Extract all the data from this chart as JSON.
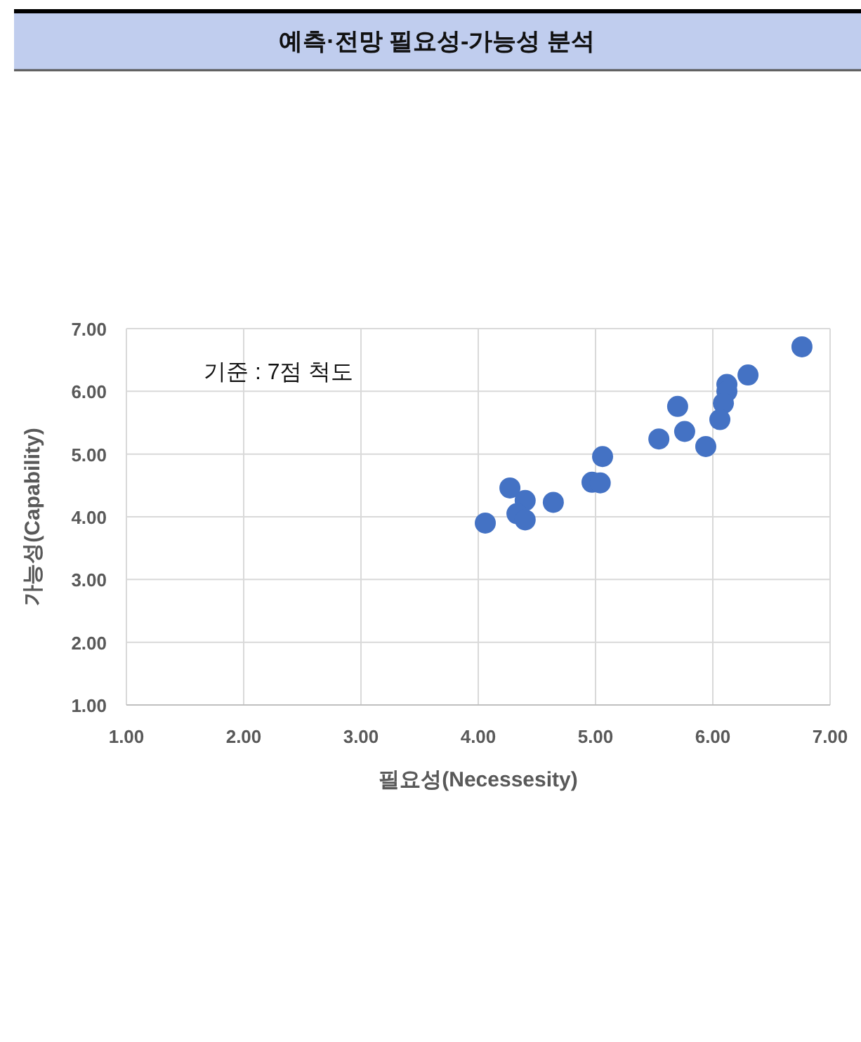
{
  "chart_data": {
    "type": "scatter",
    "title": "예측·전망 필요성-가능성 분석",
    "xlabel": "필요성(Necessesity)",
    "ylabel": "가능성(Capability)",
    "annotations": [
      "기준 : 7점 척도"
    ],
    "x": [
      6.76,
      6.3,
      6.12,
      6.12,
      6.09,
      6.06,
      5.7,
      5.76,
      5.54,
      5.94,
      5.06,
      4.97,
      5.04,
      4.64,
      4.27,
      4.4,
      4.33,
      4.4,
      4.06
    ],
    "series": [
      {
        "color": "#4472c4",
        "values": [
          6.71,
          6.26,
          6.11,
          6.0,
          5.81,
          5.55,
          5.76,
          5.36,
          5.24,
          5.12,
          4.96,
          4.55,
          4.54,
          4.23,
          4.46,
          4.26,
          4.05,
          3.95,
          3.9
        ]
      }
    ],
    "xlim": [
      1,
      7
    ],
    "ylim": [
      1,
      7
    ],
    "xticks": [
      {
        "value": 1,
        "label": "1.00"
      },
      {
        "value": 2,
        "label": "2.00"
      },
      {
        "value": 3,
        "label": "3.00"
      },
      {
        "value": 4,
        "label": "4.00"
      },
      {
        "value": 5,
        "label": "5.00"
      },
      {
        "value": 6,
        "label": "6.00"
      },
      {
        "value": 7,
        "label": "7.00"
      }
    ],
    "yticks": [
      {
        "value": 1,
        "label": "1.00"
      },
      {
        "value": 2,
        "label": "2.00"
      },
      {
        "value": 3,
        "label": "3.00"
      },
      {
        "value": 4,
        "label": "4.00"
      },
      {
        "value": 5,
        "label": "5.00"
      },
      {
        "value": 6,
        "label": "6.00"
      },
      {
        "value": 7,
        "label": "7.00"
      }
    ],
    "grid": true,
    "marker": "circle"
  }
}
